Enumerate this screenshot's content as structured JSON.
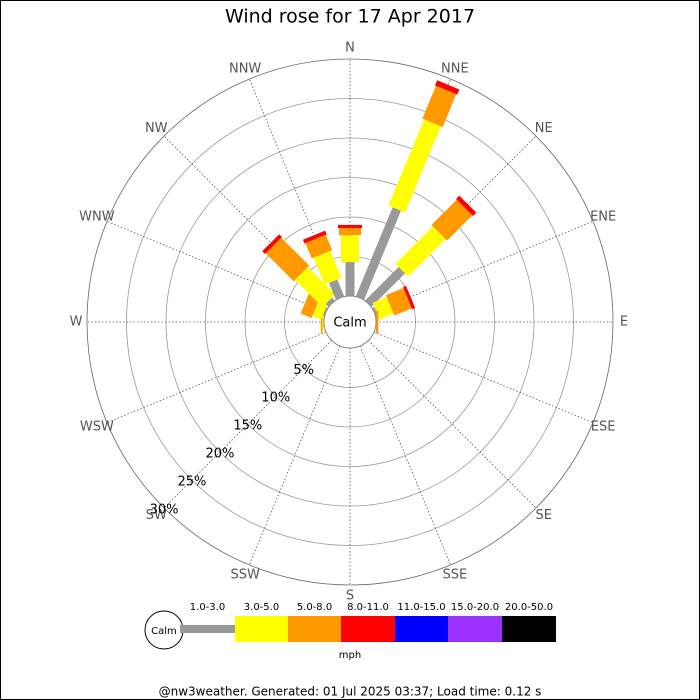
{
  "chart_data": {
    "type": "windrose",
    "title": "Wind rose for 17 Apr 2017",
    "categories": [
      "N",
      "NNE",
      "NE",
      "ENE",
      "E",
      "ESE",
      "SE",
      "SSE",
      "S",
      "SSW",
      "SW",
      "WSW",
      "W",
      "WNW",
      "NW",
      "NNW"
    ],
    "calm_label": "Calm",
    "unit_label": "mph",
    "footer": "@nw3weather. Generated: 01 Jul 2025 03:37; Load time: 0.12 s",
    "ylim": [
      0,
      30
    ],
    "yticks": [
      {
        "value": 5,
        "label": "5%"
      },
      {
        "value": 10,
        "label": "10%"
      },
      {
        "value": 15,
        "label": "15%"
      },
      {
        "value": 20,
        "label": "20%"
      },
      {
        "value": 25,
        "label": "25%"
      },
      {
        "value": 30,
        "label": "30%"
      }
    ],
    "series": [
      {
        "name": "1.0-3.0",
        "color": "#999999",
        "values": [
          4.3,
          12.2,
          6.0,
          0.3,
          0,
          0,
          0,
          0,
          0,
          0,
          0,
          0,
          0,
          0.2,
          0.5,
          2.3
        ]
      },
      {
        "name": "3.0-5.0",
        "color": "#ffff00",
        "values": [
          3.4,
          11.8,
          6.7,
          1.9,
          0,
          0,
          0,
          0,
          0,
          0,
          0,
          0,
          0.2,
          1.2,
          4.9,
          3.7
        ]
      },
      {
        "name": "5.0-8.0",
        "color": "#ff9900",
        "values": [
          0.9,
          4.5,
          4.5,
          2.4,
          0.3,
          0,
          0,
          0,
          0,
          0,
          0,
          0,
          0.2,
          1.5,
          5.0,
          2.1
        ]
      },
      {
        "name": "8.0-11.0",
        "color": "#ff0000",
        "values": [
          0.4,
          0.7,
          0.6,
          0.4,
          0,
          0,
          0,
          0,
          0,
          0,
          0,
          0,
          0,
          0,
          0.5,
          0.5
        ]
      },
      {
        "name": "11.0-15.0",
        "color": "#0000ff",
        "values": [
          0,
          0,
          0,
          0,
          0,
          0,
          0,
          0,
          0,
          0,
          0,
          0,
          0,
          0,
          0,
          0
        ]
      },
      {
        "name": "15.0-20.0",
        "color": "#9b30ff",
        "values": [
          0,
          0,
          0,
          0,
          0,
          0,
          0,
          0,
          0,
          0,
          0,
          0,
          0,
          0,
          0,
          0
        ]
      },
      {
        "name": "20.0-50.0",
        "color": "#000000",
        "values": [
          0,
          0,
          0,
          0,
          0,
          0,
          0,
          0,
          0,
          0,
          0,
          0,
          0,
          0,
          0,
          0
        ]
      }
    ]
  }
}
